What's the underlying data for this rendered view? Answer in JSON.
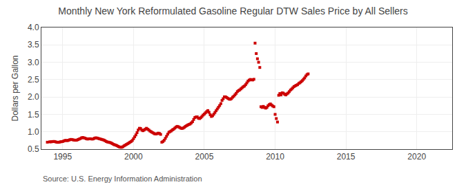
{
  "chart_data": {
    "type": "scatter",
    "title": "Monthly New York Reformulated Gasoline Regular DTW Sales Price by All Sellers",
    "ylabel": "Dollars per Gallon",
    "annotations": [
      "Source: U.S. Energy Information Administration"
    ],
    "color": "#cc0000",
    "marker": "square",
    "grid": true,
    "xlim": [
      1993.5,
      2022.5
    ],
    "ylim": [
      0.5,
      4.0
    ],
    "xticks": [
      1995,
      2000,
      2005,
      2010,
      2015,
      2020
    ],
    "yticks": [
      0.5,
      {
        "value": 1.0,
        "label": "1.0"
      },
      1.5,
      {
        "value": 2.0,
        "label": "2.0"
      },
      2.5,
      {
        "value": 3.0,
        "label": "3.0"
      },
      3.5,
      {
        "value": 4.0,
        "label": "4.0"
      }
    ],
    "x": [
      1993.917,
      1994.083,
      1994.167,
      1994.25,
      1994.333,
      1994.417,
      1994.5,
      1994.583,
      1994.667,
      1994.75,
      1994.833,
      1994.917,
      1995.0,
      1995.083,
      1995.167,
      1995.25,
      1995.333,
      1995.417,
      1995.5,
      1995.583,
      1995.667,
      1995.75,
      1995.833,
      1995.917,
      1996.0,
      1996.083,
      1996.167,
      1996.25,
      1996.333,
      1996.417,
      1996.5,
      1996.583,
      1996.667,
      1996.75,
      1996.833,
      1996.917,
      1997.0,
      1997.083,
      1997.167,
      1997.25,
      1997.333,
      1997.417,
      1997.5,
      1997.583,
      1997.667,
      1997.75,
      1997.833,
      1997.917,
      1998.0,
      1998.083,
      1998.167,
      1998.25,
      1998.333,
      1998.417,
      1998.5,
      1998.583,
      1998.667,
      1998.75,
      1998.833,
      1998.917,
      1999.0,
      1999.083,
      1999.167,
      1999.25,
      1999.333,
      1999.417,
      1999.5,
      1999.583,
      1999.667,
      1999.75,
      1999.833,
      1999.917,
      2000.0,
      2000.083,
      2000.167,
      2000.25,
      2000.333,
      2000.417,
      2000.5,
      2000.583,
      2000.667,
      2000.75,
      2000.833,
      2000.917,
      2001.0,
      2001.083,
      2001.167,
      2001.25,
      2001.333,
      2001.417,
      2001.5,
      2001.583,
      2001.667,
      2001.75,
      2001.833,
      2001.917,
      2002.0,
      2002.083,
      2002.167,
      2002.25,
      2002.333,
      2002.417,
      2002.5,
      2002.583,
      2002.667,
      2002.75,
      2002.833,
      2002.917,
      2003.0,
      2003.083,
      2003.167,
      2003.25,
      2003.333,
      2003.417,
      2003.5,
      2003.583,
      2003.667,
      2003.75,
      2003.833,
      2003.917,
      2004.0,
      2004.083,
      2004.167,
      2004.25,
      2004.333,
      2004.417,
      2004.5,
      2004.583,
      2004.667,
      2004.75,
      2004.833,
      2004.917,
      2005.0,
      2005.083,
      2005.167,
      2005.25,
      2005.333,
      2005.417,
      2005.5,
      2005.583,
      2005.667,
      2005.75,
      2005.833,
      2005.917,
      2006.0,
      2006.083,
      2006.167,
      2006.25,
      2006.333,
      2006.417,
      2006.5,
      2006.583,
      2006.667,
      2006.75,
      2006.833,
      2006.917,
      2007.0,
      2007.083,
      2007.167,
      2007.25,
      2007.333,
      2007.417,
      2007.5,
      2007.583,
      2007.667,
      2007.75,
      2007.833,
      2007.917,
      2008.0,
      2008.083,
      2008.167,
      2008.25,
      2008.333,
      2008.417,
      2008.5,
      2008.583,
      2008.667,
      2008.75,
      2008.833,
      2008.917,
      2009.0,
      2009.083,
      2009.167,
      2009.25,
      2009.333,
      2009.417,
      2009.5,
      2009.583,
      2009.667,
      2009.75,
      2009.833,
      2009.917,
      2010.0,
      2010.083,
      2010.167,
      2010.25,
      2010.333,
      2010.417,
      2010.5,
      2010.583,
      2010.667,
      2010.75,
      2010.833,
      2010.917,
      2011.0,
      2011.083,
      2011.167,
      2011.25,
      2011.333,
      2011.417,
      2011.5,
      2011.583,
      2011.667,
      2011.75,
      2011.833,
      2011.917,
      2012.0,
      2012.083,
      2012.167,
      2012.25,
      2012.333
    ],
    "values": [
      0.7,
      0.71,
      0.71,
      0.715,
      0.72,
      0.72,
      0.71,
      0.7,
      0.695,
      0.7,
      0.71,
      0.715,
      0.72,
      0.735,
      0.75,
      0.75,
      0.745,
      0.755,
      0.77,
      0.78,
      0.775,
      0.765,
      0.76,
      0.755,
      0.76,
      0.775,
      0.79,
      0.805,
      0.825,
      0.835,
      0.825,
      0.815,
      0.8,
      0.79,
      0.795,
      0.8,
      0.795,
      0.79,
      0.795,
      0.815,
      0.825,
      0.82,
      0.81,
      0.8,
      0.79,
      0.78,
      0.77,
      0.76,
      0.74,
      0.72,
      0.705,
      0.7,
      0.69,
      0.68,
      0.66,
      0.64,
      0.625,
      0.615,
      0.6,
      0.58,
      0.565,
      0.555,
      0.555,
      0.57,
      0.595,
      0.615,
      0.635,
      0.655,
      0.675,
      0.7,
      0.72,
      0.75,
      0.8,
      0.855,
      0.91,
      0.975,
      1.05,
      1.1,
      1.095,
      1.05,
      1.03,
      1.05,
      1.075,
      1.1,
      1.075,
      1.05,
      1.02,
      1.0,
      0.98,
      0.96,
      0.94,
      0.935,
      0.945,
      0.96,
      0.95,
      0.925,
      0.7,
      0.72,
      0.755,
      0.81,
      0.87,
      0.93,
      0.985,
      1.005,
      1.025,
      1.055,
      1.075,
      1.105,
      1.135,
      1.155,
      1.145,
      1.125,
      1.105,
      1.095,
      1.105,
      1.125,
      1.155,
      1.175,
      1.195,
      1.21,
      1.225,
      1.255,
      1.29,
      1.355,
      1.41,
      1.425,
      1.43,
      1.39,
      1.38,
      1.405,
      1.44,
      1.48,
      1.51,
      1.545,
      1.58,
      1.61,
      1.56,
      1.49,
      1.44,
      1.46,
      1.505,
      1.555,
      1.605,
      1.655,
      1.705,
      1.755,
      1.81,
      1.9,
      1.95,
      2.005,
      2.005,
      1.985,
      1.96,
      1.94,
      1.935,
      1.955,
      1.995,
      2.025,
      2.065,
      2.105,
      2.155,
      2.185,
      2.205,
      2.235,
      2.265,
      2.295,
      2.315,
      2.355,
      2.405,
      2.455,
      2.485,
      2.505,
      2.495,
      2.49,
      2.51,
      3.55,
      3.25,
      3.1,
      3.0,
      2.85,
      1.72,
      1.7,
      1.73,
      1.7,
      1.68,
      1.7,
      1.75,
      1.78,
      1.8,
      1.77,
      1.74,
      1.72,
      1.5,
      1.38,
      1.28,
      2.05,
      2.1,
      2.06,
      2.12,
      2.11,
      2.08,
      2.06,
      2.09,
      2.115,
      2.155,
      2.2,
      2.23,
      2.265,
      2.3,
      2.32,
      2.34,
      2.355,
      2.39,
      2.41,
      2.44,
      2.47,
      2.51,
      2.55,
      2.605,
      2.645,
      2.665
    ]
  }
}
